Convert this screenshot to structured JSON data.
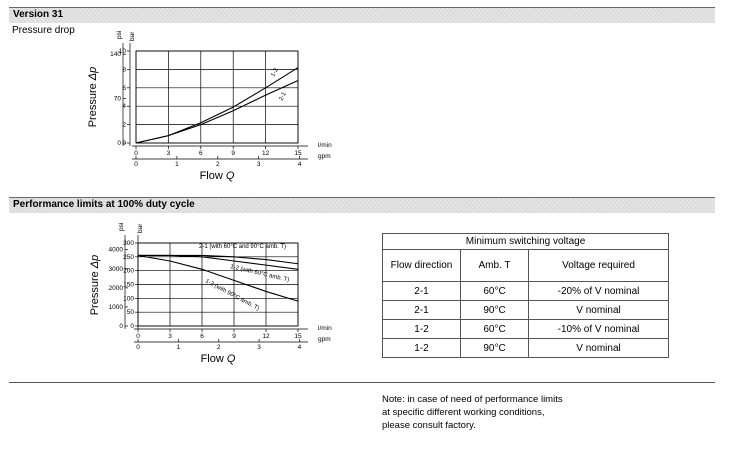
{
  "sections": {
    "version_title": "Version 31",
    "pressure_drop_title": "Pressure drop",
    "performance_title": "Performance limits at 100% duty cycle"
  },
  "chart_data": [
    {
      "type": "line",
      "name": "pressure-drop",
      "xlabel": "Flow Q",
      "ylabel": "Pressure Δp",
      "x_unit_primary": "l/min",
      "x_unit_secondary": "gpm",
      "y_unit_primary": "bar",
      "y_unit_secondary": "psi",
      "xlim": [
        0,
        15
      ],
      "ylim": [
        0,
        10
      ],
      "x_ticks": [
        0,
        3,
        6,
        9,
        12,
        15
      ],
      "y_ticks": [
        0,
        2,
        4,
        6,
        8,
        10
      ],
      "x_ticks_secondary": [
        {
          "value": 0,
          "label": "0"
        },
        {
          "value": 1,
          "label": "1"
        },
        {
          "value": 2,
          "label": "2"
        },
        {
          "value": 3,
          "label": "3"
        },
        {
          "value": 4,
          "label": "4"
        }
      ],
      "y_ticks_secondary": [
        {
          "value": 0,
          "label": "0"
        },
        {
          "value": 70,
          "label": "70"
        },
        {
          "value": 140,
          "label": "140"
        }
      ],
      "grid": true,
      "series": [
        {
          "name": "1-2",
          "x": [
            0,
            3,
            6,
            9,
            12,
            15
          ],
          "y": [
            0,
            0.8,
            2.2,
            3.9,
            6.0,
            8.2
          ]
        },
        {
          "name": "2-1",
          "x": [
            0,
            3,
            6,
            9,
            12,
            15
          ],
          "y": [
            0,
            0.8,
            2.0,
            3.5,
            5.2,
            6.8
          ]
        }
      ]
    },
    {
      "type": "line",
      "name": "performance-limits",
      "xlabel": "Flow Q",
      "ylabel": "Pressure Δp",
      "x_unit_primary": "l/min",
      "x_unit_secondary": "gpm",
      "y_unit_primary": "bar",
      "y_unit_secondary": "psi",
      "xlim": [
        0,
        15
      ],
      "ylim": [
        0,
        300
      ],
      "x_ticks": [
        0,
        3,
        6,
        9,
        12,
        15
      ],
      "y_ticks": [
        0,
        50,
        100,
        150,
        200,
        250,
        300
      ],
      "x_ticks_secondary": [
        {
          "value": 0,
          "label": "0"
        },
        {
          "value": 1,
          "label": "1"
        },
        {
          "value": 2,
          "label": "2"
        },
        {
          "value": 3,
          "label": "3"
        },
        {
          "value": 4,
          "label": "4"
        }
      ],
      "y_ticks_secondary": [
        {
          "value": 0,
          "label": "0"
        },
        {
          "value": 1000,
          "label": "1000"
        },
        {
          "value": 2000,
          "label": "2000"
        },
        {
          "value": 3000,
          "label": "3000"
        },
        {
          "value": 4000,
          "label": "4000"
        }
      ],
      "grid": true,
      "series": [
        {
          "name": "2-1 (with 60°C and 90°C amb. T)",
          "x": [
            0,
            3,
            6,
            9,
            12,
            15
          ],
          "y": [
            255,
            255,
            255,
            250,
            240,
            225
          ]
        },
        {
          "name": "1-2 (with 60°C amb. T)",
          "x": [
            0,
            3,
            6,
            9,
            12,
            15
          ],
          "y": [
            255,
            255,
            250,
            235,
            220,
            205
          ]
        },
        {
          "name": "1-2 (with 90°C amb. T)",
          "x": [
            0,
            3,
            6,
            9,
            12,
            15
          ],
          "y": [
            255,
            235,
            205,
            165,
            125,
            90
          ]
        }
      ]
    }
  ],
  "table": {
    "title": "Minimum switching voltage",
    "headers": [
      "Flow direction",
      "Amb. T",
      "Voltage required"
    ],
    "rows": [
      [
        "2-1",
        "60°C",
        "-20% of V nominal"
      ],
      [
        "2-1",
        "90°C",
        "V nominal"
      ],
      [
        "1-2",
        "60°C",
        "-10% of V nominal"
      ],
      [
        "1-2",
        "90°C",
        "V nominal"
      ]
    ]
  },
  "note": {
    "line1": "Note: in case of need of performance limits",
    "line2": "at specific different working conditions,",
    "line3": "please consult factory."
  }
}
